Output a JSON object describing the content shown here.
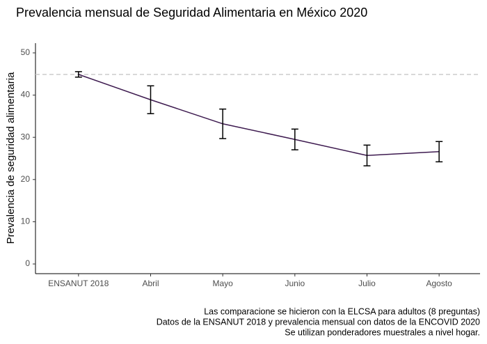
{
  "chart_data": {
    "type": "line",
    "title": "Prevalencia mensual de Seguridad Alimentaria en México 2020",
    "y_label": "Prevalencia de seguridad alimentaria",
    "categories": [
      "ENSANUT 2018",
      "Abril",
      "Mayo",
      "Junio",
      "Julio",
      "Agosto"
    ],
    "series": [
      {
        "name": "Prevalencia",
        "color": "#3d1a4f",
        "values": [
          44.9,
          38.9,
          33.2,
          29.5,
          25.7,
          26.6
        ],
        "errors": [
          0.65,
          3.3,
          3.5,
          2.45,
          2.45,
          2.4
        ]
      }
    ],
    "reference_line": {
      "value": 44.9,
      "color": "#cccccc"
    },
    "ylim": [
      -2.3,
      52.3
    ],
    "yticks": [
      0,
      10,
      20,
      30,
      40,
      50
    ],
    "grid": false,
    "caption": [
      "Las comparacione se hicieron con la ELCSA para adultos (8 preguntas)",
      "Datos de la ENSANUT 2018 y prevalencia mensual con datos de la ENCOVID 2020",
      "Se utilizan ponderadores muestrales a nivel hogar."
    ]
  }
}
